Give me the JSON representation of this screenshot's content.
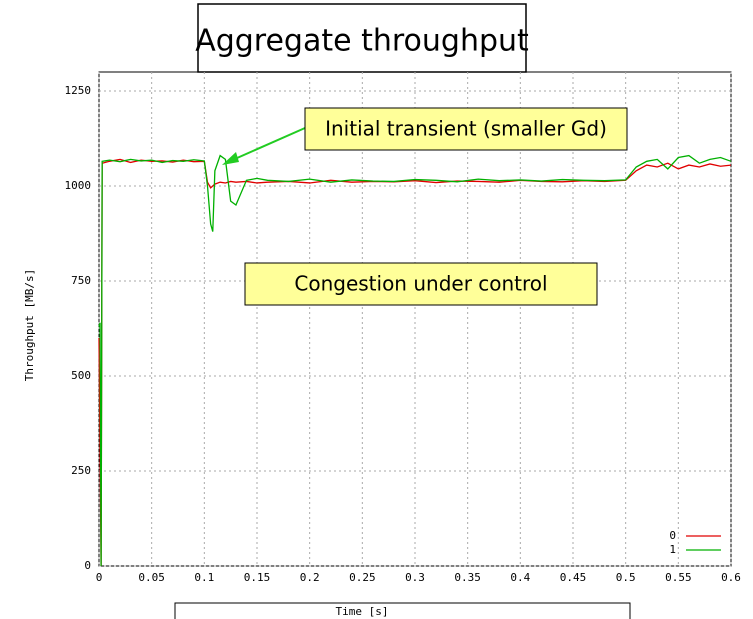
{
  "chart_data": {
    "type": "line",
    "title": "Aggregate throughput",
    "xlabel": "Time [s]",
    "ylabel": "Throughput [MB/s]",
    "annotations": [
      "Initial transient (smaller Gd)",
      "Congestion under control"
    ],
    "x": [
      0,
      0.001,
      0.002,
      0.003,
      0.01,
      0.02,
      0.03,
      0.04,
      0.05,
      0.06,
      0.07,
      0.08,
      0.09,
      0.1,
      0.103,
      0.106,
      0.108,
      0.11,
      0.115,
      0.12,
      0.125,
      0.13,
      0.14,
      0.15,
      0.16,
      0.18,
      0.2,
      0.22,
      0.24,
      0.26,
      0.28,
      0.3,
      0.32,
      0.34,
      0.36,
      0.38,
      0.4,
      0.42,
      0.44,
      0.46,
      0.48,
      0.5,
      0.51,
      0.52,
      0.53,
      0.54,
      0.55,
      0.56,
      0.57,
      0.58,
      0.59,
      0.6
    ],
    "series": [
      {
        "name": "0",
        "color": "#e00000",
        "values": [
          600,
          300,
          0,
          1060,
          1065,
          1070,
          1062,
          1068,
          1065,
          1066,
          1063,
          1068,
          1064,
          1065,
          1010,
          995,
          1000,
          1005,
          1010,
          1008,
          1012,
          1010,
          1012,
          1008,
          1010,
          1012,
          1008,
          1015,
          1010,
          1012,
          1011,
          1014,
          1009,
          1013,
          1012,
          1010,
          1015,
          1012,
          1011,
          1014,
          1012,
          1015,
          1040,
          1055,
          1050,
          1060,
          1045,
          1055,
          1050,
          1058,
          1052,
          1055
        ]
      },
      {
        "name": "1",
        "color": "#00b000",
        "values": [
          630,
          640,
          0,
          1065,
          1068,
          1064,
          1070,
          1066,
          1068,
          1062,
          1067,
          1065,
          1069,
          1066,
          1000,
          900,
          880,
          1040,
          1080,
          1070,
          960,
          950,
          1015,
          1020,
          1015,
          1012,
          1018,
          1010,
          1016,
          1013,
          1012,
          1017,
          1015,
          1011,
          1018,
          1014,
          1016,
          1013,
          1017,
          1015,
          1014,
          1016,
          1050,
          1065,
          1070,
          1045,
          1075,
          1080,
          1060,
          1070,
          1075,
          1065
        ]
      }
    ],
    "xlim": [
      0,
      0.6
    ],
    "ylim": [
      0,
      1300
    ],
    "xticks": [
      0,
      0.05,
      0.1,
      0.15,
      0.2,
      0.25,
      0.3,
      0.35,
      0.4,
      0.45,
      0.5,
      0.55,
      0.6
    ],
    "yticks": [
      0,
      250,
      500,
      750,
      1000,
      1250
    ],
    "grid": true,
    "legend": "lower right"
  }
}
